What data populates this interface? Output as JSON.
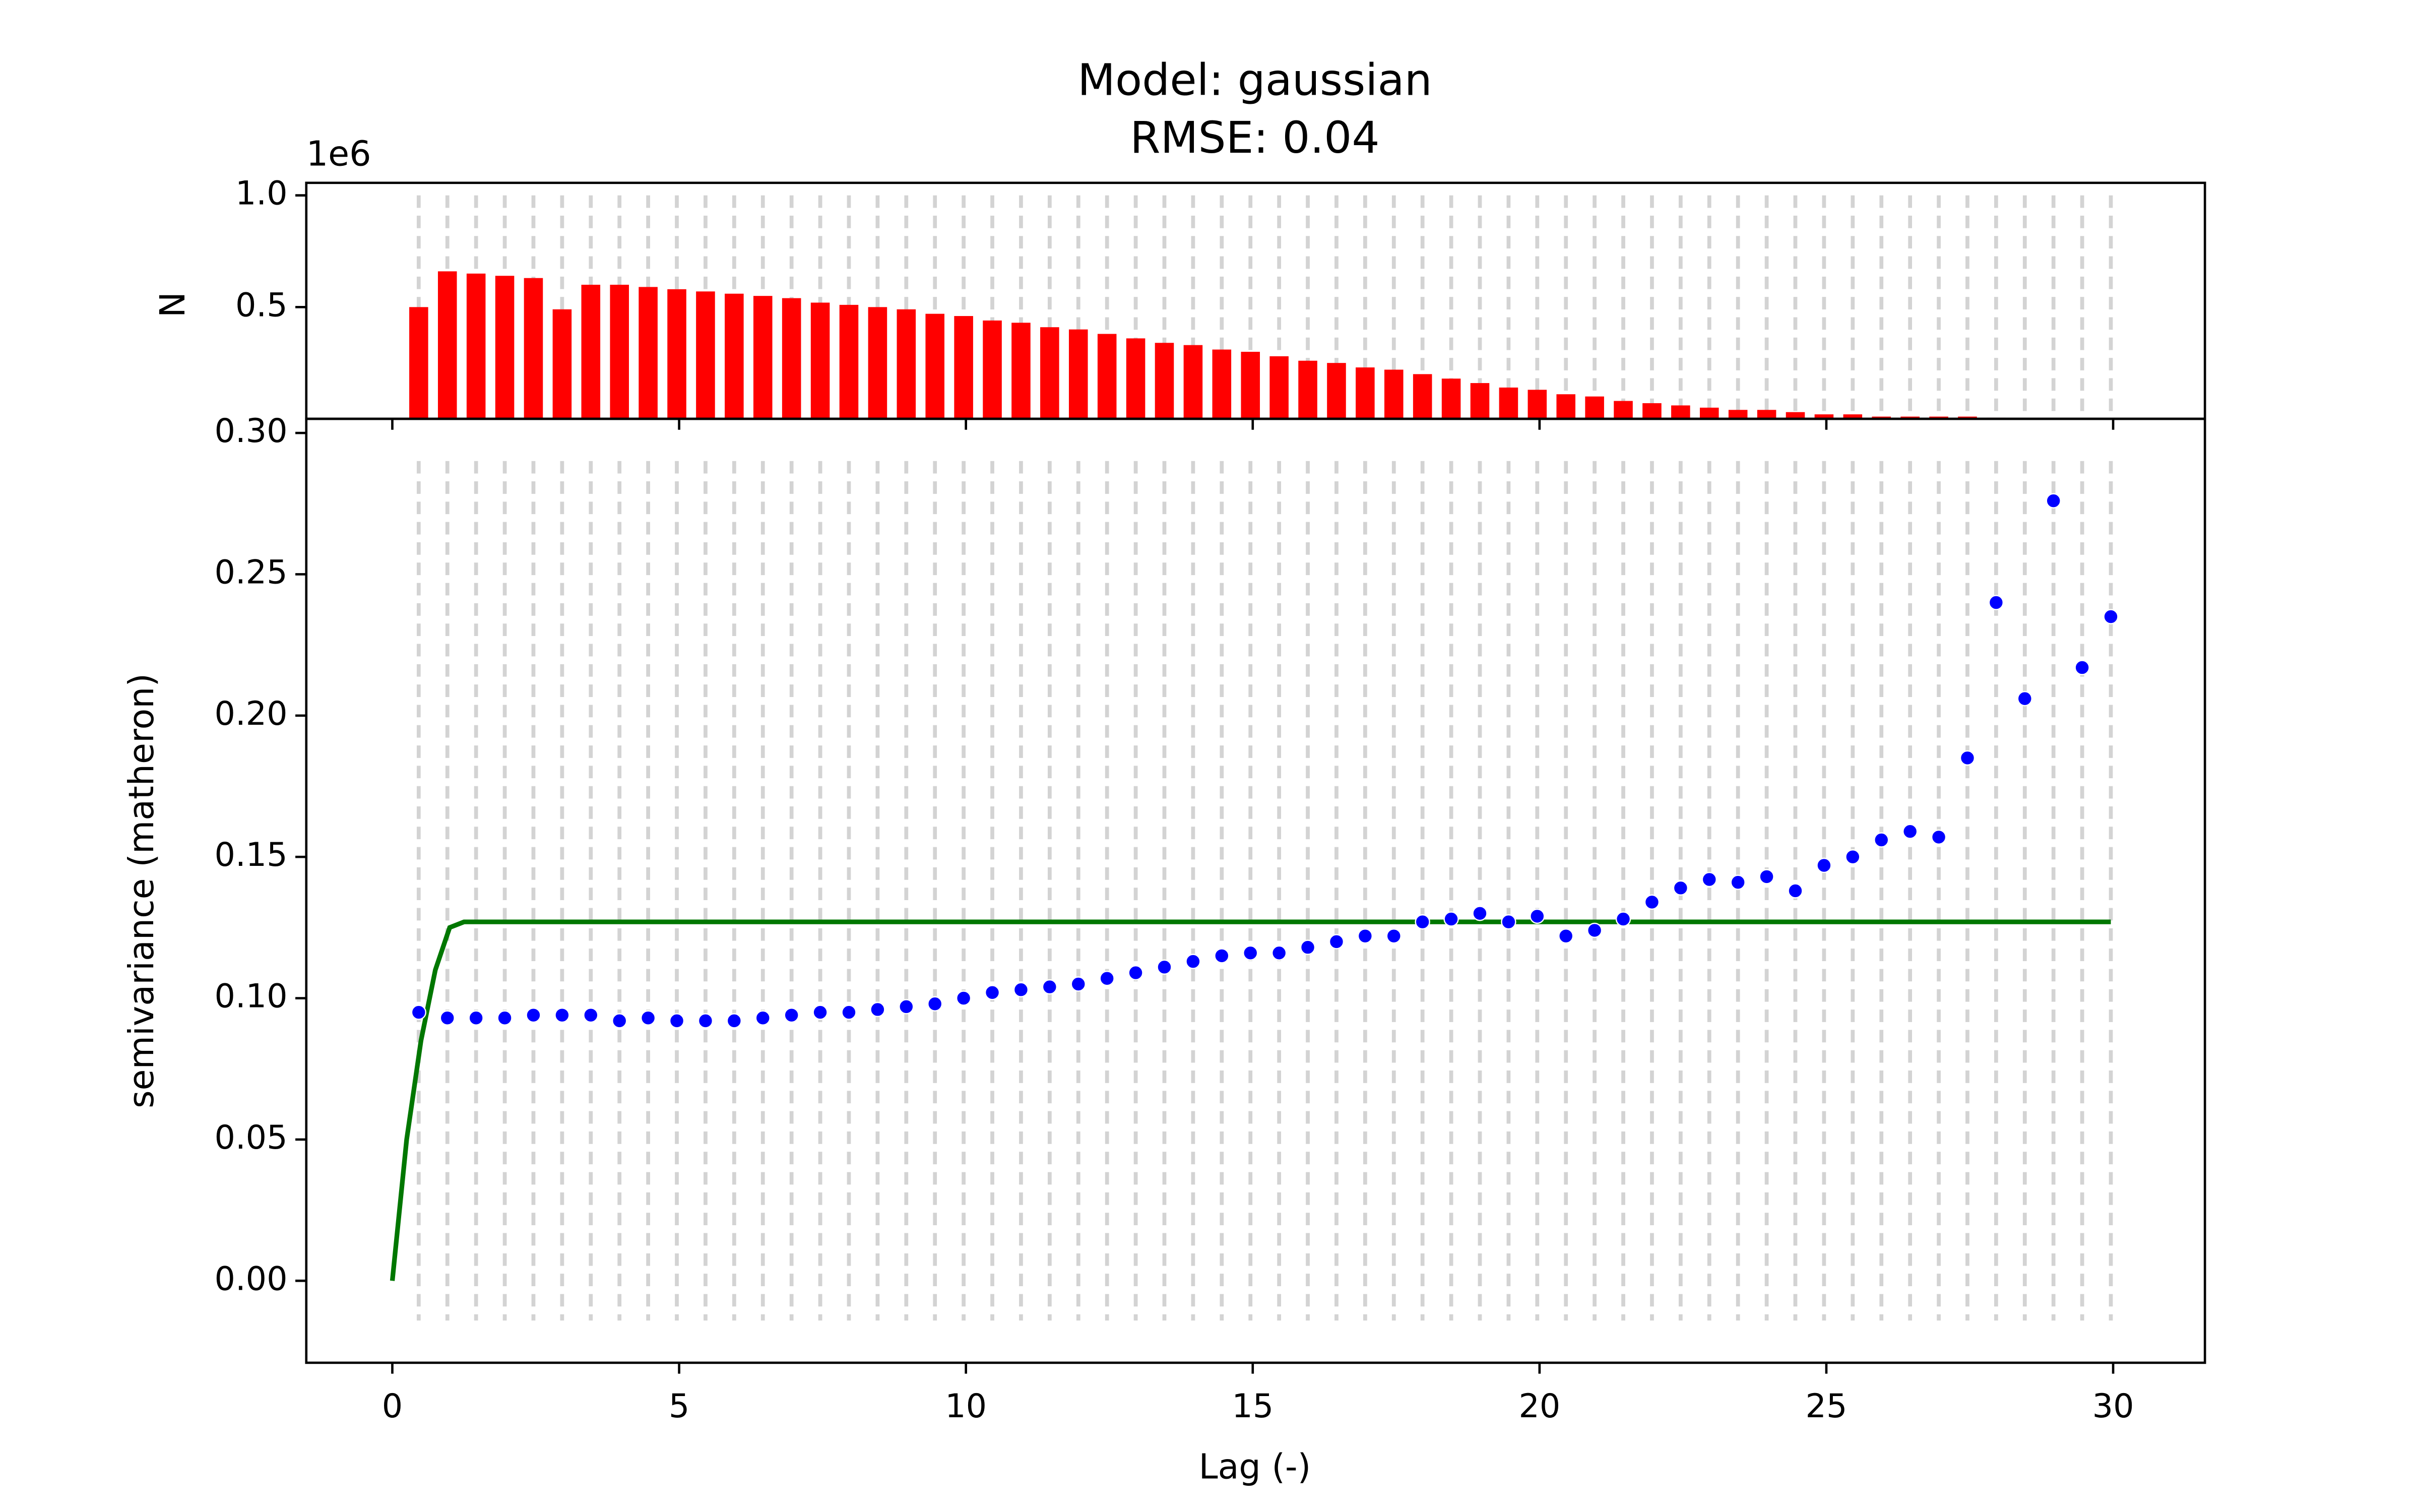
{
  "chart_data": [
    {
      "type": "bar",
      "title": "Model: gaussian",
      "subtitle": "RMSE: 0.04",
      "ylabel": "N",
      "offset_label": "1e6",
      "x": [
        0.46,
        0.96,
        1.46,
        1.96,
        2.46,
        2.96,
        3.46,
        3.96,
        4.46,
        4.96,
        5.46,
        5.96,
        6.46,
        6.96,
        7.46,
        7.96,
        8.46,
        8.96,
        9.46,
        9.96,
        10.46,
        10.96,
        11.46,
        11.96,
        12.46,
        12.96,
        13.46,
        13.96,
        14.46,
        14.96,
        15.46,
        15.96,
        16.46,
        16.96,
        17.46,
        17.96,
        18.46,
        18.96,
        19.46,
        19.96,
        20.46,
        20.96,
        21.46,
        21.96,
        22.46,
        22.96,
        23.46,
        23.96,
        24.46,
        24.96,
        25.46,
        25.96,
        26.46,
        26.96,
        27.46,
        27.96,
        28.46,
        28.96,
        29.46,
        29.96
      ],
      "values": [
        0.5,
        0.66,
        0.65,
        0.64,
        0.63,
        0.49,
        0.6,
        0.6,
        0.59,
        0.58,
        0.57,
        0.56,
        0.55,
        0.54,
        0.52,
        0.51,
        0.5,
        0.49,
        0.47,
        0.46,
        0.44,
        0.43,
        0.41,
        0.4,
        0.38,
        0.36,
        0.34,
        0.33,
        0.31,
        0.3,
        0.28,
        0.26,
        0.25,
        0.23,
        0.22,
        0.2,
        0.18,
        0.16,
        0.14,
        0.13,
        0.11,
        0.1,
        0.08,
        0.07,
        0.06,
        0.05,
        0.04,
        0.04,
        0.03,
        0.02,
        0.02,
        0.01,
        0.01,
        0.01,
        0.01,
        0.005,
        0.002,
        0,
        0,
        0
      ],
      "color": "#ff0000",
      "xlim": [
        -1.5,
        31.6
      ],
      "xticks": [
        0,
        5,
        10,
        15,
        20,
        25,
        30
      ],
      "ylim": [
        0,
        1.056
      ],
      "yticks": [
        0.5,
        {
          "value": 1.0,
          "label": "1.0"
        }
      ]
    },
    {
      "type": "scatter",
      "xlabel": "Lag (-)",
      "ylabel": "semivariance (matheron)",
      "x": [
        0.46,
        0.96,
        1.46,
        1.96,
        2.46,
        2.96,
        3.46,
        3.96,
        4.46,
        4.96,
        5.46,
        5.96,
        6.46,
        6.96,
        7.46,
        7.96,
        8.46,
        8.96,
        9.46,
        9.96,
        10.46,
        10.96,
        11.46,
        11.96,
        12.46,
        12.96,
        13.46,
        13.96,
        14.46,
        14.96,
        15.46,
        15.96,
        16.46,
        16.96,
        17.46,
        17.96,
        18.46,
        18.96,
        19.46,
        19.96,
        20.46,
        20.96,
        21.46,
        21.96,
        22.46,
        22.96,
        23.46,
        23.96,
        24.46,
        24.96,
        25.46,
        25.96,
        26.46,
        26.96,
        27.46,
        27.96,
        28.46,
        28.96,
        29.46,
        29.96
      ],
      "values": [
        0.095,
        0.093,
        0.093,
        0.093,
        0.094,
        0.094,
        0.094,
        0.092,
        0.093,
        0.092,
        0.092,
        0.092,
        0.093,
        0.094,
        0.095,
        0.095,
        0.096,
        0.097,
        0.098,
        0.1,
        0.102,
        0.103,
        0.104,
        0.105,
        0.107,
        0.109,
        0.111,
        0.113,
        0.115,
        0.116,
        0.116,
        0.118,
        0.12,
        0.122,
        0.122,
        0.127,
        0.128,
        0.13,
        0.127,
        0.129,
        0.122,
        0.124,
        0.128,
        0.134,
        0.139,
        0.142,
        0.141,
        0.143,
        0.138,
        0.147,
        0.15,
        0.156,
        0.159,
        0.157,
        0.185,
        0.24,
        0.206,
        0.276,
        0.217,
        0.235
      ],
      "color": "#0000ff",
      "line": {
        "x": [
          0,
          0.25,
          0.5,
          0.75,
          1.0,
          1.25,
          29.96
        ],
        "y": [
          0,
          0.05,
          0.085,
          0.11,
          0.125,
          0.127,
          0.127
        ],
        "color": "#007700"
      },
      "xlim": [
        -1.5,
        31.6
      ],
      "xticks": [
        0,
        5,
        10,
        15,
        20,
        25,
        30
      ],
      "ylim": [
        -0.029,
        0.305
      ],
      "yticks": [
        {
          "value": 0,
          "label": "0.00"
        },
        {
          "value": 0.05,
          "label": "0.05"
        },
        {
          "value": 0.1,
          "label": "0.10"
        },
        {
          "value": 0.15,
          "label": "0.15"
        },
        {
          "value": 0.2,
          "label": "0.20"
        },
        {
          "value": 0.25,
          "label": "0.25"
        },
        {
          "value": 0.3,
          "label": "0.30"
        }
      ]
    }
  ]
}
